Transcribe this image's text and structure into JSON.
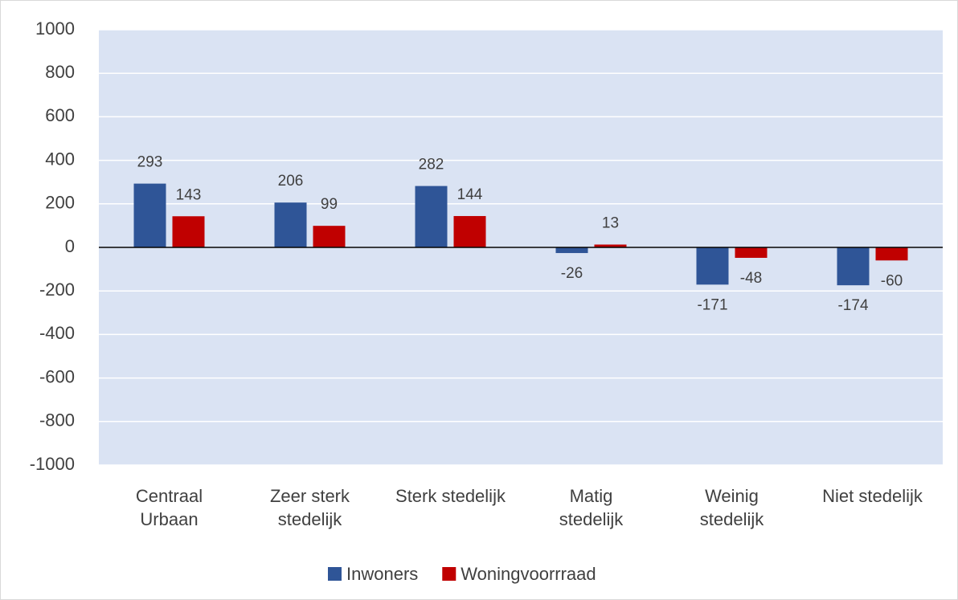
{
  "chart_data": {
    "type": "bar",
    "categories": [
      "Centraal\nUrbaan",
      "Zeer sterk\nstedelijk",
      "Sterk stedelijk",
      "Matig\nstedelijk",
      "Weinig\nstedelijk",
      "Niet stedelijk"
    ],
    "series": [
      {
        "name": "Inwoners",
        "color": "#2f5597",
        "values": [
          293,
          206,
          282,
          -26,
          -171,
          -174
        ]
      },
      {
        "name": "Woningvoorrraad",
        "color": "#c00000",
        "values": [
          143,
          99,
          144,
          13,
          -48,
          -60
        ]
      }
    ],
    "ylim": [
      -1000,
      1000
    ],
    "yticks": [
      -1000,
      -800,
      -600,
      -400,
      -200,
      0,
      200,
      400,
      600,
      800,
      1000
    ],
    "grid": true,
    "legend": "bottom",
    "plot_background": "#dae3f3"
  }
}
